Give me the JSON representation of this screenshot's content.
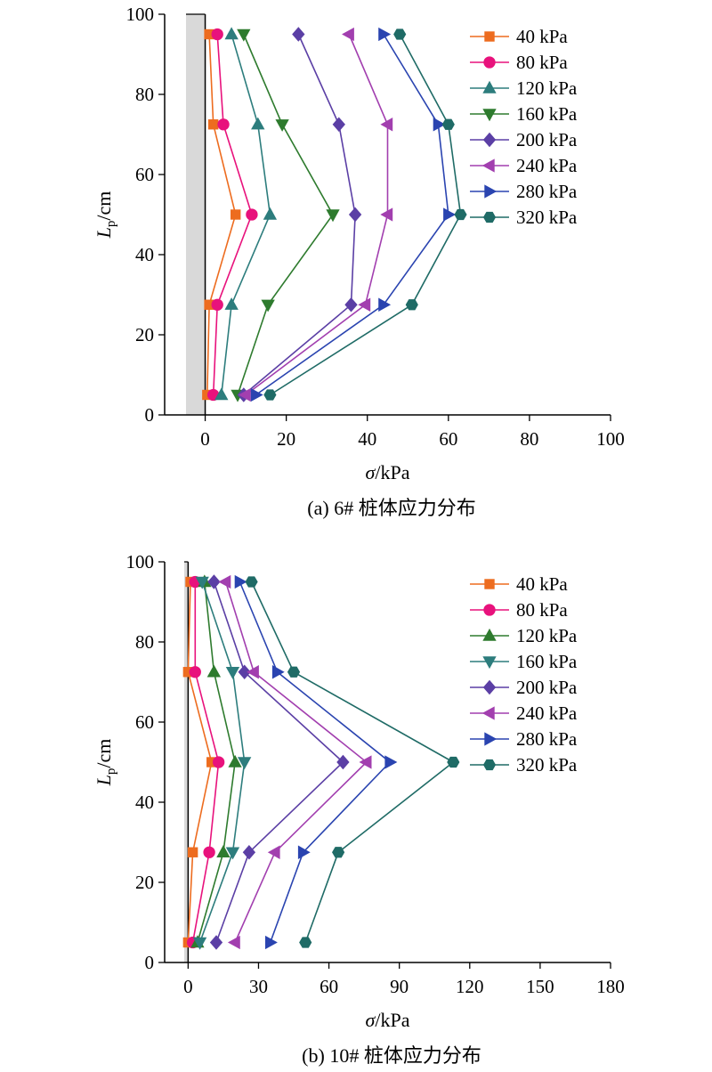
{
  "chart_data": [
    {
      "type": "line",
      "caption": "(a) 6# 桩体应力分布",
      "xlabel": {
        "sym": "σ",
        "unit": "/kPa"
      },
      "ylabel": {
        "sym": "L",
        "sub": "p",
        "unit": "/cm"
      },
      "xlim": [
        -10,
        100
      ],
      "ylim": [
        0,
        100
      ],
      "xticks": [
        0,
        20,
        40,
        60,
        80,
        100
      ],
      "yticks": [
        0,
        20,
        40,
        60,
        80,
        100
      ],
      "y": [
        5,
        27.5,
        50,
        72.5,
        95
      ],
      "legend_position": "top-right",
      "series": [
        {
          "name": "40 kPa",
          "color": "#ED6C1F",
          "marker": "square",
          "x": [
            0.5,
            1,
            7.5,
            2,
            1
          ]
        },
        {
          "name": "80 kPa",
          "color": "#E8127C",
          "marker": "circle",
          "x": [
            2,
            3,
            11.5,
            4.5,
            3
          ]
        },
        {
          "name": "120 kPa",
          "color": "#2D7D7D",
          "marker": "triangle-up",
          "x": [
            4,
            6.5,
            16,
            13,
            6.5
          ]
        },
        {
          "name": "160 kPa",
          "color": "#2E7B2E",
          "marker": "triangle-down",
          "x": [
            8,
            15.5,
            31.5,
            19,
            9.5
          ]
        },
        {
          "name": "200 kPa",
          "color": "#5B3FA5",
          "marker": "diamond",
          "x": [
            9.5,
            36,
            37,
            33,
            23
          ]
        },
        {
          "name": "240 kPa",
          "color": "#A23FAF",
          "marker": "triangle-left",
          "x": [
            10,
            39.5,
            45,
            45,
            35.5
          ]
        },
        {
          "name": "280 kPa",
          "color": "#2A44B0",
          "marker": "triangle-right",
          "x": [
            12.5,
            44,
            60,
            57.5,
            44
          ]
        },
        {
          "name": "320 kPa",
          "color": "#1F6B66",
          "marker": "hexagon",
          "x": [
            16,
            51,
            63,
            60,
            48
          ]
        }
      ]
    },
    {
      "type": "line",
      "caption": "(b) 10# 桩体应力分布",
      "xlabel": {
        "sym": "σ",
        "unit": "/kPa"
      },
      "ylabel": {
        "sym": "L",
        "sub": "p",
        "unit": "/cm"
      },
      "xlim": [
        -10,
        180
      ],
      "ylim": [
        0,
        100
      ],
      "xticks": [
        0,
        30,
        60,
        90,
        120,
        150,
        180
      ],
      "yticks": [
        0,
        20,
        40,
        60,
        80,
        100
      ],
      "y": [
        5,
        27.5,
        50,
        72.5,
        95
      ],
      "legend_position": "top-right",
      "series": [
        {
          "name": "40 kPa",
          "color": "#ED6C1F",
          "marker": "square",
          "x": [
            0,
            2,
            10,
            0,
            1
          ]
        },
        {
          "name": "80 kPa",
          "color": "#E8127C",
          "marker": "circle",
          "x": [
            2,
            9,
            13,
            3,
            3
          ]
        },
        {
          "name": "120 kPa",
          "color": "#2E7B2E",
          "marker": "triangle-up",
          "x": [
            4,
            15,
            20,
            11,
            7
          ]
        },
        {
          "name": "160 kPa",
          "color": "#2D7D7D",
          "marker": "triangle-down",
          "x": [
            5,
            19,
            24,
            19,
            6
          ]
        },
        {
          "name": "200 kPa",
          "color": "#5B3FA5",
          "marker": "diamond",
          "x": [
            12,
            26,
            66,
            24,
            11
          ]
        },
        {
          "name": "240 kPa",
          "color": "#A23FAF",
          "marker": "triangle-left",
          "x": [
            20,
            37,
            76,
            28,
            16
          ]
        },
        {
          "name": "280 kPa",
          "color": "#2A44B0",
          "marker": "triangle-right",
          "x": [
            35,
            49,
            86,
            38,
            22
          ]
        },
        {
          "name": "320 kPa",
          "color": "#1F6B66",
          "marker": "hexagon",
          "x": [
            50,
            64,
            113,
            45,
            27
          ]
        }
      ]
    }
  ]
}
